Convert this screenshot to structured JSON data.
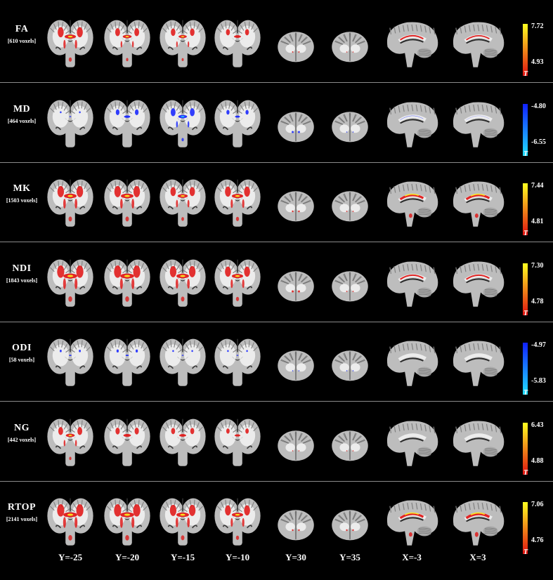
{
  "rows": [
    {
      "metric": "FA",
      "voxels": "[610 voxels]",
      "cb_max": "7.72",
      "cb_min": "4.93",
      "t_label": "T",
      "type": "positive",
      "blobs": [
        0.8,
        0.6,
        0.55,
        0.45,
        0.12,
        0.05,
        0.5,
        0.45
      ]
    },
    {
      "metric": "MD",
      "voxels": "[464 voxels]",
      "cb_max": "-4.80",
      "cb_min": "-6.55",
      "t_label": "T",
      "type": "negative",
      "blobs": [
        0.05,
        0.4,
        0.6,
        0.3,
        0.3,
        0.05,
        0.1,
        0.05
      ]
    },
    {
      "metric": "MK",
      "voxels": "[1503 voxels]",
      "cb_max": "7.44",
      "cb_min": "4.81",
      "t_label": "T",
      "type": "positive",
      "blobs": [
        0.9,
        0.9,
        0.7,
        0.8,
        0.2,
        0.1,
        0.8,
        0.8
      ]
    },
    {
      "metric": "NDI",
      "voxels": "[1843 voxels]",
      "cb_max": "7.30",
      "cb_min": "4.78",
      "t_label": "T",
      "type": "positive",
      "blobs": [
        1.0,
        1.0,
        0.9,
        0.8,
        0.3,
        0.1,
        0.5,
        0.5
      ]
    },
    {
      "metric": "ODI",
      "voxels": "[58 voxels]",
      "cb_max": "-4.97",
      "cb_min": "-5.83",
      "t_label": "T",
      "type": "negative",
      "blobs": [
        0.1,
        0.15,
        0.05,
        0.05,
        0.05,
        0.05,
        0.0,
        0.0
      ]
    },
    {
      "metric": "NG",
      "voxels": "[442 voxels]",
      "cb_max": "6.43",
      "cb_min": "4.88",
      "t_label": "T",
      "type": "positive",
      "blobs": [
        0.6,
        0.5,
        0.45,
        0.35,
        0.05,
        0.05,
        0.0,
        0.0
      ]
    },
    {
      "metric": "RTOP",
      "voxels": "[2141 voxels]",
      "cb_max": "7.06",
      "cb_min": "4.76",
      "t_label": "T",
      "type": "positive",
      "blobs": [
        1.0,
        1.0,
        0.9,
        0.8,
        0.2,
        0.2,
        0.8,
        0.9
      ]
    }
  ],
  "columns": [
    {
      "label": "Y=-25",
      "view": "coronal-large"
    },
    {
      "label": "Y=-20",
      "view": "coronal-large"
    },
    {
      "label": "Y=-15",
      "view": "coronal-large"
    },
    {
      "label": "Y=-10",
      "view": "coronal-large"
    },
    {
      "label": "Y=30",
      "view": "coronal-small"
    },
    {
      "label": "Y=35",
      "view": "coronal-small"
    },
    {
      "label": "X=-3",
      "view": "sagittal"
    },
    {
      "label": "X=3",
      "view": "sagittal"
    }
  ],
  "colors": {
    "background": "#000000",
    "brain_tissue": "#bdbdbd",
    "white_matter": "#ececec",
    "positive_low": "#e01010",
    "positive_high": "#ffff20",
    "negative_low": "#1020ff",
    "negative_high": "#20e0ff"
  }
}
